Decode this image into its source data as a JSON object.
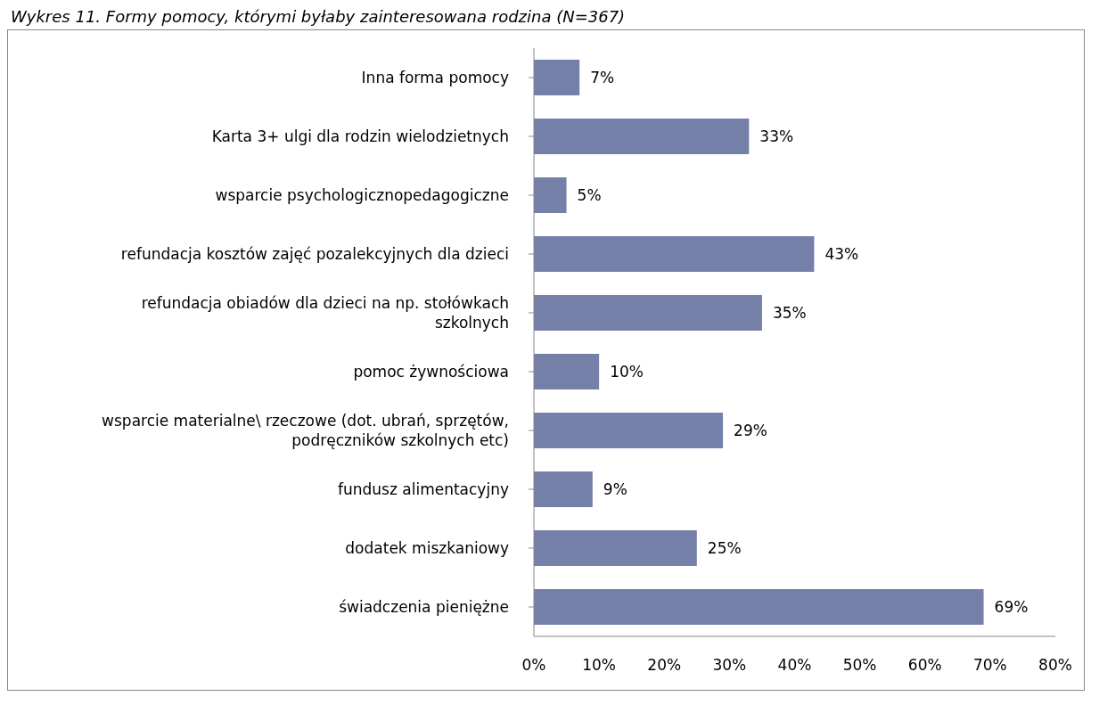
{
  "chart_data": {
    "type": "bar",
    "orientation": "horizontal",
    "title": "Wykres 11. Formy pomocy, którymi byłaby zainteresowana rodzina (N=367)",
    "categories": [
      "Inna forma pomocy",
      "Karta 3+ ulgi dla rodzin wielodzietnych",
      "wsparcie psychologicznopedagogiczne",
      "refundacja kosztów zajęć pozalekcyjnych dla dzieci",
      "refundacja obiadów dla dzieci na np. stołówkach szkolnych",
      "pomoc żywnościowa",
      "wsparcie materialne\\ rzeczowe (dot. ubrań, sprzętów, podręczników szkolnych etc)",
      "fundusz alimentacyjny",
      "dodatek miszkaniowy",
      "świadczenia pieniężne"
    ],
    "values": [
      7,
      33,
      5,
      43,
      35,
      10,
      29,
      9,
      25,
      69
    ],
    "value_labels": [
      "7%",
      "33%",
      "5%",
      "43%",
      "35%",
      "10%",
      "29%",
      "9%",
      "25%",
      "69%"
    ],
    "color": "#7480a8",
    "xlim": [
      0,
      80
    ],
    "xticks": [
      {
        "value": 0,
        "label": "0%"
      },
      {
        "value": 10,
        "label": "10%"
      },
      {
        "value": 20,
        "label": "20%"
      },
      {
        "value": 30,
        "label": "30%"
      },
      {
        "value": 40,
        "label": "40%"
      },
      {
        "value": 50,
        "label": "50%"
      },
      {
        "value": 60,
        "label": "60%"
      },
      {
        "value": 70,
        "label": "70%"
      },
      {
        "value": 80,
        "label": "80%"
      }
    ],
    "grid": false
  }
}
